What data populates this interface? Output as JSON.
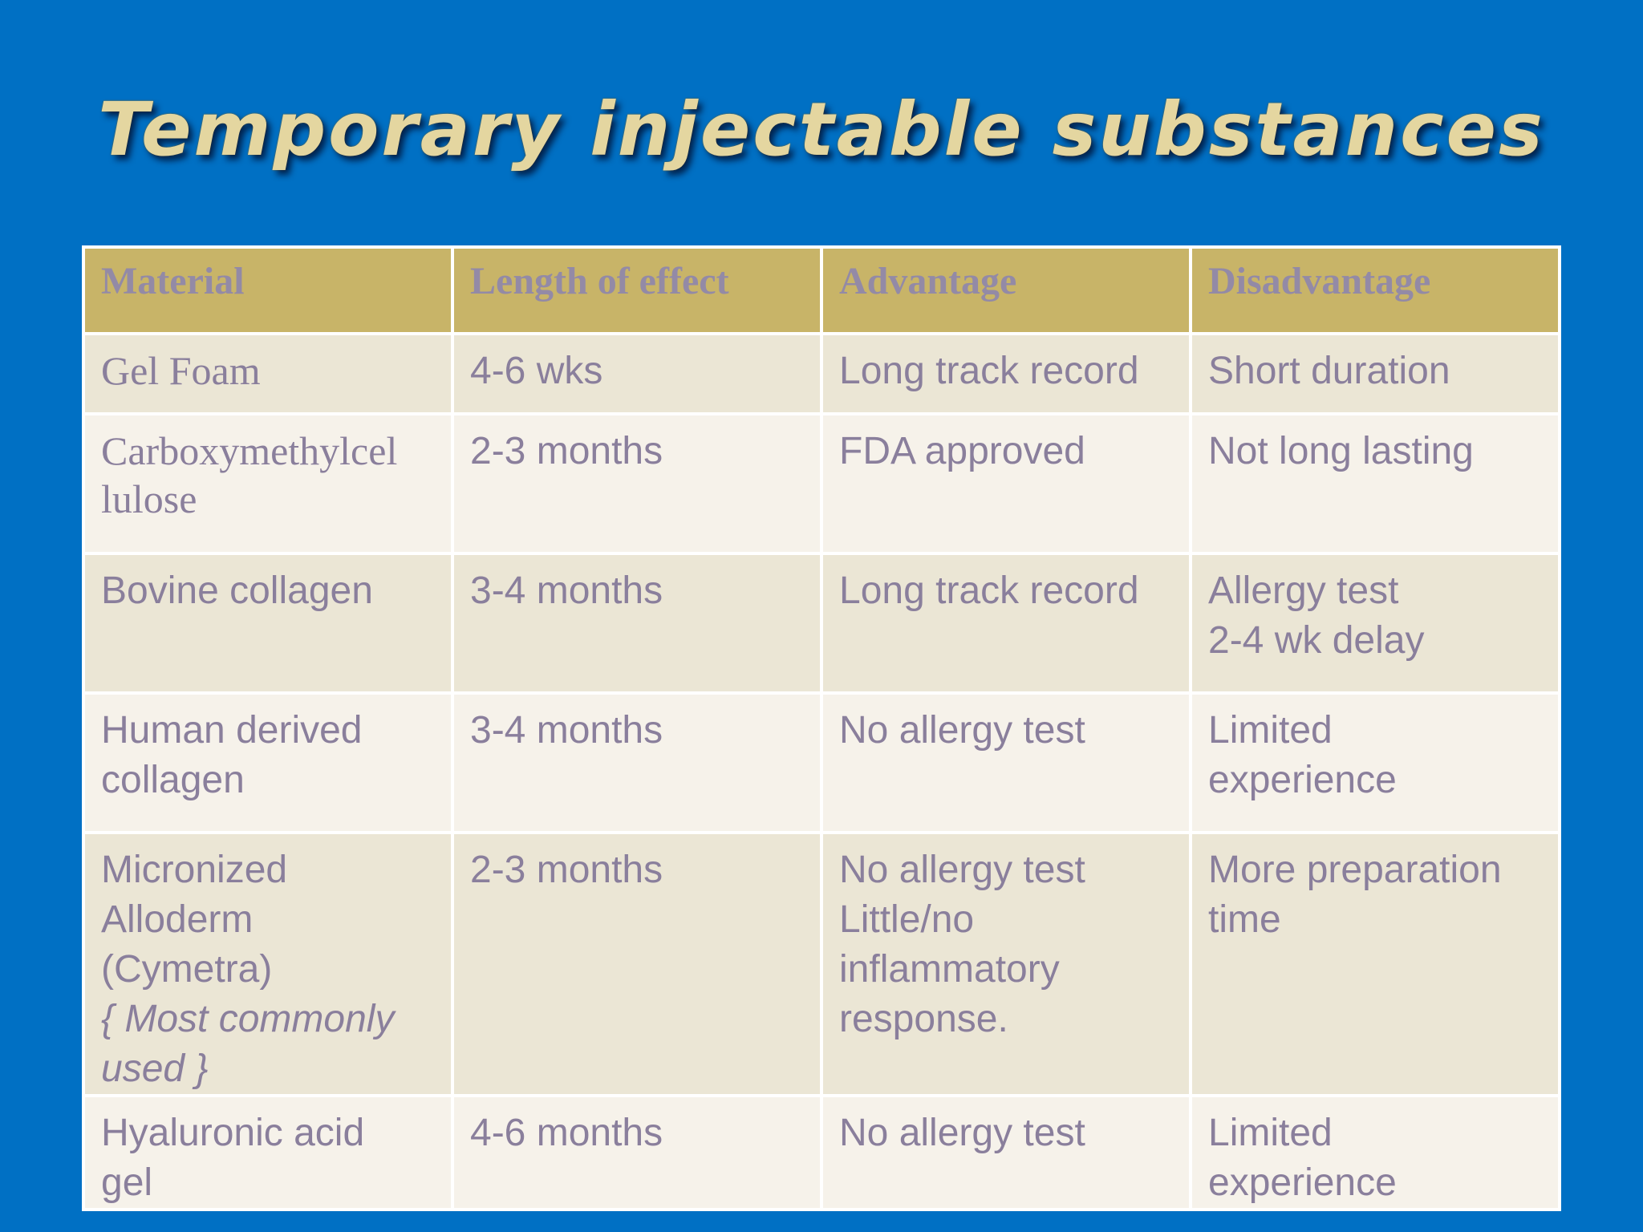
{
  "slide": {
    "title": "Temporary injectable substances"
  },
  "table": {
    "headers": [
      "Material",
      "Length of effect",
      "Advantage",
      "Disadvantage"
    ],
    "rows": [
      {
        "material": [
          "Gel Foam"
        ],
        "length": "4-6 wks",
        "advantage": [
          "Long track record"
        ],
        "disadvantage": [
          "Short duration"
        ]
      },
      {
        "material": [
          "Carboxymethylcel",
          "lulose"
        ],
        "length": "2-3 months",
        "advantage": [
          "FDA approved"
        ],
        "disadvantage": [
          "Not long lasting"
        ]
      },
      {
        "material": [
          "Bovine collagen"
        ],
        "length": "3-4 months",
        "advantage": [
          "Long track record"
        ],
        "disadvantage": [
          "Allergy test",
          "2-4 wk delay"
        ]
      },
      {
        "material": [
          "Human derived",
          "collagen"
        ],
        "length": "3-4 months",
        "advantage": [
          "No allergy test"
        ],
        "disadvantage": [
          "Limited",
          "experience"
        ]
      },
      {
        "material": [
          "Micronized",
          "Alloderm",
          "(Cymetra)"
        ],
        "material_note": [
          "{ Most commonly",
          "used }"
        ],
        "length": "2-3 months",
        "advantage": [
          "No allergy test",
          "Little/no",
          "inflammatory",
          "response."
        ],
        "disadvantage": [
          "More preparation",
          "time"
        ]
      },
      {
        "material": [
          "Hyaluronic acid",
          "gel"
        ],
        "length": "4-6 months",
        "advantage": [
          "No allergy test"
        ],
        "disadvantage": [
          "Limited",
          "experience"
        ]
      }
    ]
  },
  "colors": {
    "background": "#0070c4",
    "header_fill": "#c8b468",
    "row_odd": "#ebe6d5",
    "row_even": "#f6f2ea",
    "text": "#8a7f9c",
    "title": "#e4d6a0"
  }
}
